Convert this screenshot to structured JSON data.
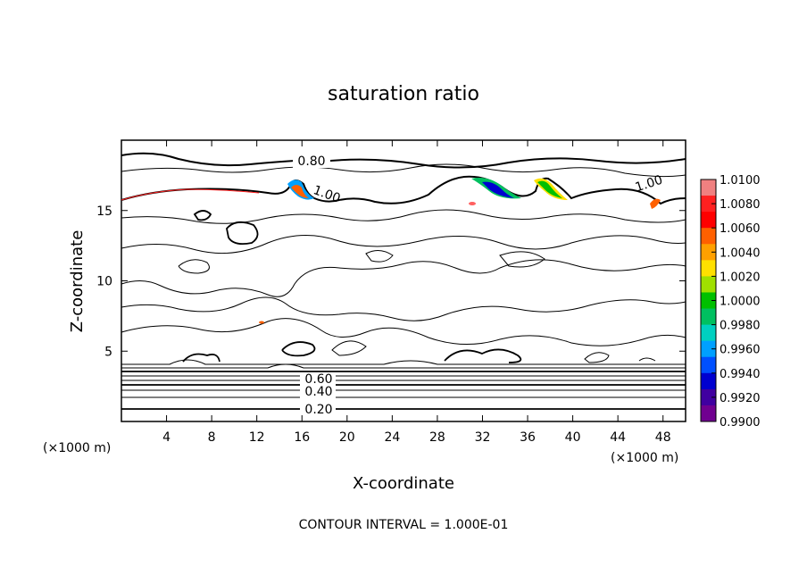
{
  "chart_data": {
    "type": "heatmap",
    "title": "saturation ratio",
    "xlabel": "X-coordinate",
    "ylabel": "Z-coordinate",
    "x_unit": "(×1000 m)",
    "x_unit_right": "(×1000 m)",
    "xlim": [
      0,
      50
    ],
    "ylim": [
      0,
      20
    ],
    "xticks": [
      4,
      8,
      12,
      16,
      20,
      24,
      28,
      32,
      36,
      40,
      44,
      48
    ],
    "yticks": [
      5,
      10,
      15
    ],
    "colorbar": {
      "labels": [
        "1.0100",
        "1.0080",
        "1.0060",
        "1.0040",
        "1.0020",
        "1.0000",
        "0.9980",
        "0.9960",
        "0.9940",
        "0.9920",
        "0.9900"
      ],
      "colors": [
        "#f08080",
        "#ff2020",
        "#ff0000",
        "#ff6000",
        "#ffa000",
        "#ffe000",
        "#a0e000",
        "#00c000",
        "#00c060",
        "#00d0c0",
        "#00a0ff",
        "#0050ff",
        "#0000d0",
        "#4000a0",
        "#700090"
      ]
    },
    "contour_labels": [
      {
        "text": "0.80",
        "x": 17.0,
        "z": 18.5
      },
      {
        "text": "1.00",
        "x": 18.5,
        "z": 16.2
      },
      {
        "text": "1.00",
        "x": 46.2,
        "z": 16.8
      },
      {
        "text": "0.60",
        "x": 17.5,
        "z": 2.9
      },
      {
        "text": "0.40",
        "x": 17.5,
        "z": 2.2
      },
      {
        "text": "0.20",
        "x": 17.5,
        "z": 0.9
      }
    ],
    "footer": "CONTOUR INTERVAL = 1.000E-01"
  }
}
